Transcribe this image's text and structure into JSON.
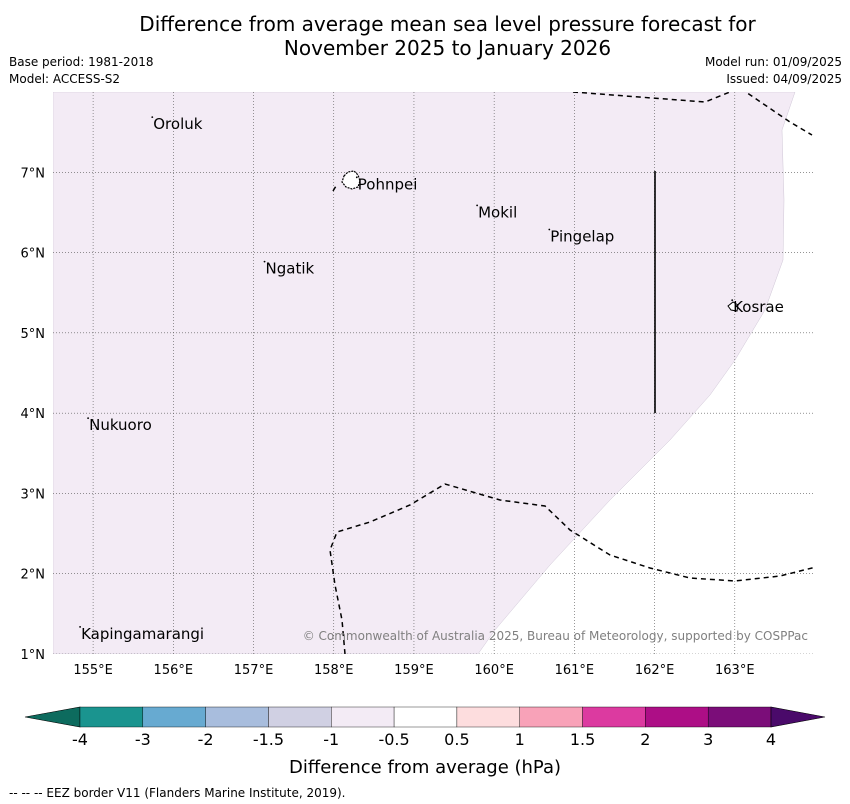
{
  "title": {
    "line1": "Difference from average mean sea level pressure forecast for",
    "line2": "November 2025 to January 2026"
  },
  "meta": {
    "base_period": "Base period: 1981-2018",
    "model": "Model: ACCESS-S2",
    "model_run": "Model run: 01/09/2025",
    "issued": "Issued: 04/09/2025"
  },
  "map": {
    "lon_range": [
      154.5,
      164.0
    ],
    "lat_range": [
      1.0,
      8.0
    ],
    "lon_ticks": [
      "155°E",
      "156°E",
      "157°E",
      "158°E",
      "159°E",
      "160°E",
      "161°E",
      "162°E",
      "163°E"
    ],
    "lat_ticks": [
      "1°N",
      "2°N",
      "3°N",
      "4°N",
      "5°N",
      "6°N",
      "7°N"
    ],
    "shaded_region_color": "#f3ebf5",
    "shaded_region_class": "-1 to -0.5",
    "places": [
      {
        "name": "Oroluk",
        "lon": 155.75,
        "lat": 7.6
      },
      {
        "name": "Pohnpei",
        "lon": 158.3,
        "lat": 6.85
      },
      {
        "name": "Mokil",
        "lon": 159.8,
        "lat": 6.5
      },
      {
        "name": "Pingelap",
        "lon": 160.7,
        "lat": 6.2
      },
      {
        "name": "Ngatik",
        "lon": 157.15,
        "lat": 5.8
      },
      {
        "name": "Kosrae",
        "lon": 162.98,
        "lat": 5.32
      },
      {
        "name": "Nukuoro",
        "lon": 154.95,
        "lat": 3.85
      },
      {
        "name": "Kapingamarangi",
        "lon": 154.85,
        "lat": 1.25
      }
    ],
    "copyright": "© Commonwealth of Australia 2025, Bureau of Meteorology, supported by COSPPac"
  },
  "colorbar": {
    "label": "Difference from average (hPa)",
    "ticks": [
      "-4",
      "-3",
      "-2",
      "-1.5",
      "-1",
      "-0.5",
      "0.5",
      "1",
      "1.5",
      "2",
      "3",
      "4"
    ],
    "colors": [
      "#1a948f",
      "#67aad1",
      "#a8bddd",
      "#d0d0e3",
      "#f3ebf5",
      "#ffffff",
      "#fdddde",
      "#f8a2b8",
      "#dc3aa0",
      "#ad0e86",
      "#7b0d79"
    ],
    "extend_low_color": "#0d6b5e",
    "extend_high_color": "#4a0a6a"
  },
  "footer": "--  --  -- EEZ border V11 (Flanders Marine Institute, 2019)."
}
